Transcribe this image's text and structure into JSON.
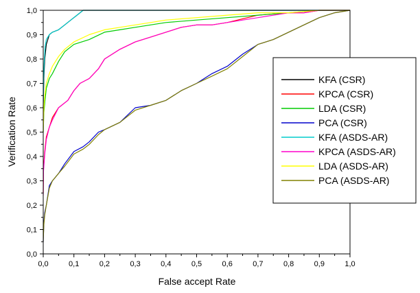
{
  "chart_data": {
    "type": "line",
    "title": "",
    "xlabel": "False accept Rate",
    "ylabel": "Verification Rate",
    "xlim": [
      0,
      1
    ],
    "ylim": [
      0,
      1
    ],
    "xticks": [
      "0,0",
      "0,1",
      "0,2",
      "0,3",
      "0,4",
      "0,5",
      "0,6",
      "0,7",
      "0,8",
      "0,9",
      "1,0"
    ],
    "yticks": [
      "0,0",
      "0,1",
      "0,2",
      "0,3",
      "0,4",
      "0,5",
      "0,6",
      "0,7",
      "0,8",
      "0,9",
      "1,0"
    ],
    "grid": false,
    "legend_position": "right",
    "series": [
      {
        "name": "KFA (CSR)",
        "color": "#000000",
        "x": [
          0,
          0.002,
          0.005,
          0.01,
          0.02,
          0.03,
          0.05,
          0.07,
          0.09,
          0.11,
          0.12,
          0.13,
          0.2,
          1
        ],
        "y": [
          0.6,
          0.72,
          0.8,
          0.86,
          0.9,
          0.91,
          0.92,
          0.94,
          0.96,
          0.98,
          0.99,
          1,
          1,
          1
        ]
      },
      {
        "name": "KPCA (CSR)",
        "color": "#ff0000",
        "x": [
          0,
          0.001,
          0.005,
          0.01,
          0.02,
          0.03,
          0.05,
          0.08,
          0.1,
          0.12,
          0.15,
          0.18,
          0.2,
          0.25,
          0.3,
          0.35,
          0.4,
          0.45,
          0.5,
          0.55,
          0.6,
          0.7,
          0.8,
          0.85,
          0.9,
          0.95,
          1
        ],
        "y": [
          0.25,
          0.35,
          0.42,
          0.48,
          0.52,
          0.56,
          0.6,
          0.63,
          0.67,
          0.7,
          0.72,
          0.76,
          0.8,
          0.84,
          0.87,
          0.89,
          0.91,
          0.93,
          0.94,
          0.94,
          0.95,
          0.98,
          0.99,
          0.99,
          1,
          1,
          1
        ]
      },
      {
        "name": "LDA (CSR)",
        "color": "#00cc00",
        "x": [
          0,
          0.002,
          0.005,
          0.01,
          0.02,
          0.03,
          0.05,
          0.07,
          0.1,
          0.15,
          0.2,
          0.25,
          0.3,
          0.35,
          0.4,
          0.5,
          0.6,
          0.7,
          0.8,
          0.9,
          1
        ],
        "y": [
          0.5,
          0.58,
          0.62,
          0.68,
          0.72,
          0.74,
          0.79,
          0.83,
          0.86,
          0.88,
          0.91,
          0.92,
          0.93,
          0.94,
          0.95,
          0.96,
          0.97,
          0.98,
          0.99,
          1,
          1
        ]
      },
      {
        "name": "PCA (CSR)",
        "color": "#0000cc",
        "x": [
          0,
          0.002,
          0.005,
          0.01,
          0.02,
          0.03,
          0.05,
          0.07,
          0.1,
          0.13,
          0.15,
          0.18,
          0.2,
          0.25,
          0.3,
          0.35,
          0.4,
          0.45,
          0.5,
          0.55,
          0.6,
          0.65,
          0.7,
          0.75,
          0.8,
          0.85,
          0.9,
          0.95,
          1
        ],
        "y": [
          0.05,
          0.13,
          0.17,
          0.2,
          0.28,
          0.3,
          0.33,
          0.37,
          0.42,
          0.44,
          0.46,
          0.5,
          0.51,
          0.54,
          0.6,
          0.61,
          0.63,
          0.67,
          0.7,
          0.74,
          0.77,
          0.82,
          0.86,
          0.88,
          0.91,
          0.94,
          0.97,
          0.99,
          1
        ]
      },
      {
        "name": "KFA (ASDS-AR)",
        "color": "#00cccc",
        "x": [
          0,
          0.001,
          0.003,
          0.006,
          0.01,
          0.02,
          0.03,
          0.05,
          0.07,
          0.09,
          0.11,
          0.12,
          0.13,
          0.2,
          1
        ],
        "y": [
          0.6,
          0.7,
          0.78,
          0.85,
          0.88,
          0.9,
          0.91,
          0.92,
          0.94,
          0.96,
          0.98,
          0.99,
          1,
          1,
          1
        ]
      },
      {
        "name": "KPCA (ASDS-AR)",
        "color": "#ff00cc",
        "x": [
          0,
          0.001,
          0.005,
          0.01,
          0.02,
          0.03,
          0.05,
          0.08,
          0.1,
          0.12,
          0.15,
          0.18,
          0.2,
          0.25,
          0.3,
          0.35,
          0.4,
          0.45,
          0.5,
          0.55,
          0.6,
          0.7,
          0.8,
          0.85,
          0.9,
          0.95,
          1
        ],
        "y": [
          0.24,
          0.34,
          0.41,
          0.47,
          0.52,
          0.55,
          0.6,
          0.63,
          0.67,
          0.7,
          0.72,
          0.76,
          0.8,
          0.84,
          0.87,
          0.89,
          0.91,
          0.93,
          0.94,
          0.94,
          0.95,
          0.97,
          0.99,
          0.99,
          1,
          1,
          1
        ]
      },
      {
        "name": "LDA (ASDS-AR)",
        "color": "#ffff00",
        "x": [
          0,
          0.002,
          0.005,
          0.01,
          0.02,
          0.03,
          0.05,
          0.07,
          0.1,
          0.15,
          0.2,
          0.25,
          0.3,
          0.35,
          0.4,
          0.5,
          0.6,
          0.7,
          0.8,
          0.9,
          1
        ],
        "y": [
          0.5,
          0.6,
          0.65,
          0.7,
          0.74,
          0.77,
          0.81,
          0.84,
          0.87,
          0.9,
          0.92,
          0.93,
          0.94,
          0.95,
          0.96,
          0.97,
          0.98,
          0.99,
          0.99,
          1,
          1
        ]
      },
      {
        "name": "PCA (ASDS-AR)",
        "color": "#808000",
        "x": [
          0,
          0.002,
          0.005,
          0.01,
          0.02,
          0.03,
          0.05,
          0.07,
          0.1,
          0.13,
          0.15,
          0.18,
          0.2,
          0.25,
          0.3,
          0.35,
          0.4,
          0.45,
          0.5,
          0.55,
          0.6,
          0.65,
          0.7,
          0.75,
          0.8,
          0.85,
          0.9,
          0.95,
          1
        ],
        "y": [
          0.05,
          0.12,
          0.16,
          0.2,
          0.27,
          0.3,
          0.33,
          0.36,
          0.41,
          0.43,
          0.45,
          0.49,
          0.51,
          0.54,
          0.59,
          0.61,
          0.63,
          0.67,
          0.7,
          0.73,
          0.76,
          0.81,
          0.86,
          0.88,
          0.91,
          0.94,
          0.97,
          0.99,
          1
        ]
      }
    ]
  }
}
